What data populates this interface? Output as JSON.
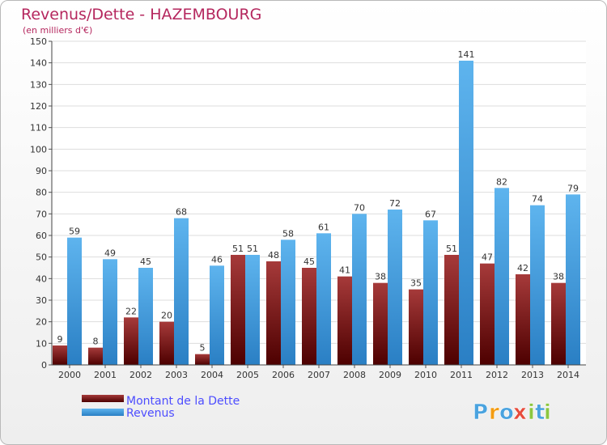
{
  "chart_data": {
    "type": "bar",
    "title": "Revenus/Dette - HAZEMBOURG",
    "subtitle": "(en milliers d'€)",
    "categories": [
      "2000",
      "2001",
      "2002",
      "2003",
      "2004",
      "2005",
      "2006",
      "2007",
      "2008",
      "2009",
      "2010",
      "2011",
      "2012",
      "2013",
      "2014"
    ],
    "series": [
      {
        "name": "Montant de la Dette",
        "color": "#7a1717",
        "values": [
          9,
          8,
          22,
          20,
          5,
          51,
          48,
          45,
          41,
          38,
          35,
          51,
          47,
          42,
          38
        ]
      },
      {
        "name": "Revenus",
        "color": "#3d98dd",
        "values": [
          59,
          49,
          45,
          68,
          46,
          51,
          58,
          61,
          70,
          72,
          67,
          141,
          82,
          74,
          79
        ]
      }
    ],
    "ylim": [
      0,
      150
    ],
    "yticks": [
      0,
      10,
      20,
      30,
      40,
      50,
      60,
      70,
      80,
      90,
      100,
      110,
      120,
      130,
      140,
      150
    ],
    "grid": true,
    "legend_position": "bottom-left",
    "xlabel": "",
    "ylabel": ""
  },
  "branding": {
    "logo_letters": [
      "P",
      "r",
      "o",
      "x",
      "i",
      "t",
      "i"
    ],
    "logo_colors": [
      "#4aa3df",
      "#f39c12",
      "#4aa3df",
      "#e74c3c",
      "#8cc63f",
      "#4aa3df",
      "#8cc63f"
    ]
  }
}
